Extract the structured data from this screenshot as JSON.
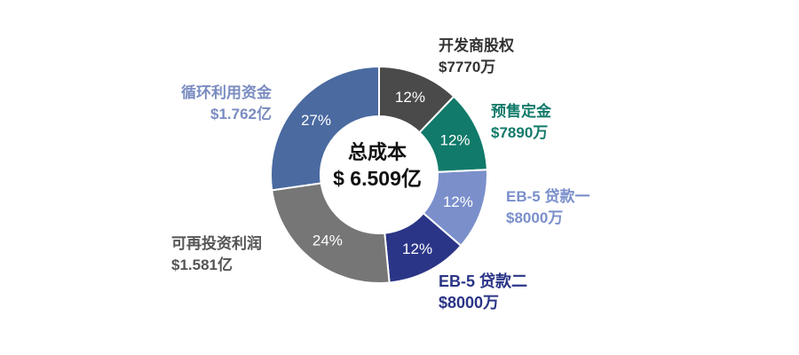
{
  "chart_data": {
    "type": "pie",
    "variant": "donut",
    "title": "",
    "center_label": {
      "title": "总成本",
      "amount": "$ 6.509亿"
    },
    "slices": [
      {
        "name": "开发商股权",
        "amount": "$7770万",
        "percent_label": "12%",
        "value": 12,
        "color": "#4a4a4a",
        "label_color": "#333333"
      },
      {
        "name": "预售定金",
        "amount": "$7890万",
        "percent_label": "12%",
        "value": 12,
        "color": "#117a6a",
        "label_color": "#117a6a"
      },
      {
        "name": "EB-5 贷款一",
        "amount": "$8000万",
        "percent_label": "12%",
        "value": 12,
        "color": "#7b8fcb",
        "label_color": "#7b8fcb"
      },
      {
        "name": "EB-5 贷款二",
        "amount": "$8000万",
        "percent_label": "12%",
        "value": 12,
        "color": "#2b3587",
        "label_color": "#2b3587"
      },
      {
        "name": "可再投资利润",
        "amount": "$1.581亿",
        "percent_label": "24%",
        "value": 24,
        "color": "#767676",
        "label_color": "#555555"
      },
      {
        "name": "循环利用资金",
        "amount": "$1.762亿",
        "percent_label": "27%",
        "value": 27,
        "color": "#4a6aa0",
        "label_color": "#7a8cc0"
      }
    ]
  }
}
